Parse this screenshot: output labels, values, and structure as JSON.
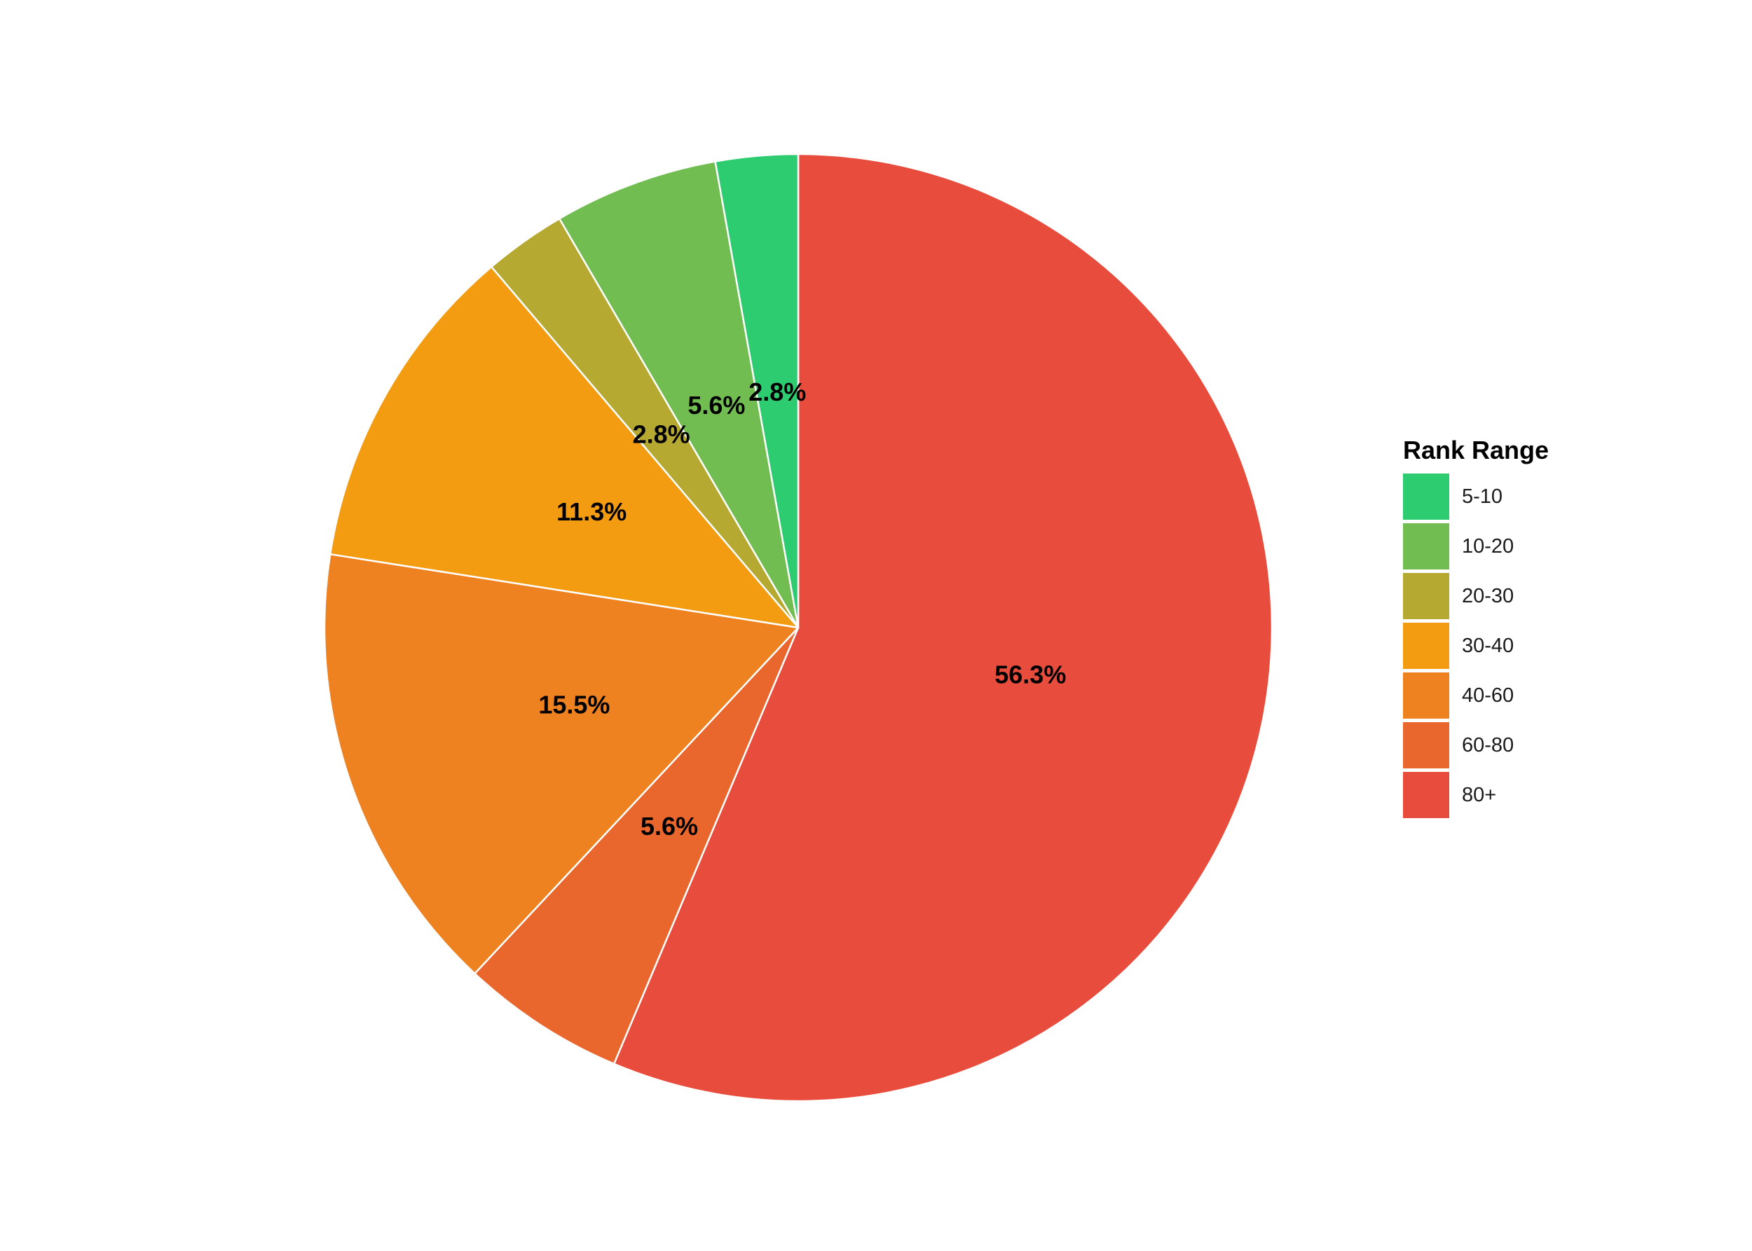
{
  "chart_data": {
    "type": "pie",
    "legend_title": "Rank Range",
    "legend_position": "right",
    "start": "top, clockwise from largest",
    "categories": [
      "5-10",
      "10-20",
      "20-30",
      "30-40",
      "40-60",
      "60-80",
      "80+"
    ],
    "values": [
      2.8,
      5.6,
      2.8,
      11.3,
      15.5,
      5.6,
      56.3
    ],
    "labels": [
      "2.8%",
      "5.6%",
      "2.8%",
      "11.3%",
      "15.5%",
      "5.6%",
      "56.3%"
    ],
    "colors": [
      "#2ecc71",
      "#72bd52",
      "#b5a931",
      "#f39c12",
      "#ee8221",
      "#e9662d",
      "#e74c3c"
    ],
    "slice_border_color": "#ffffff",
    "drawing_order": [
      "80+",
      "60-80",
      "40-60",
      "30-40",
      "20-30",
      "10-20",
      "5-10"
    ]
  }
}
